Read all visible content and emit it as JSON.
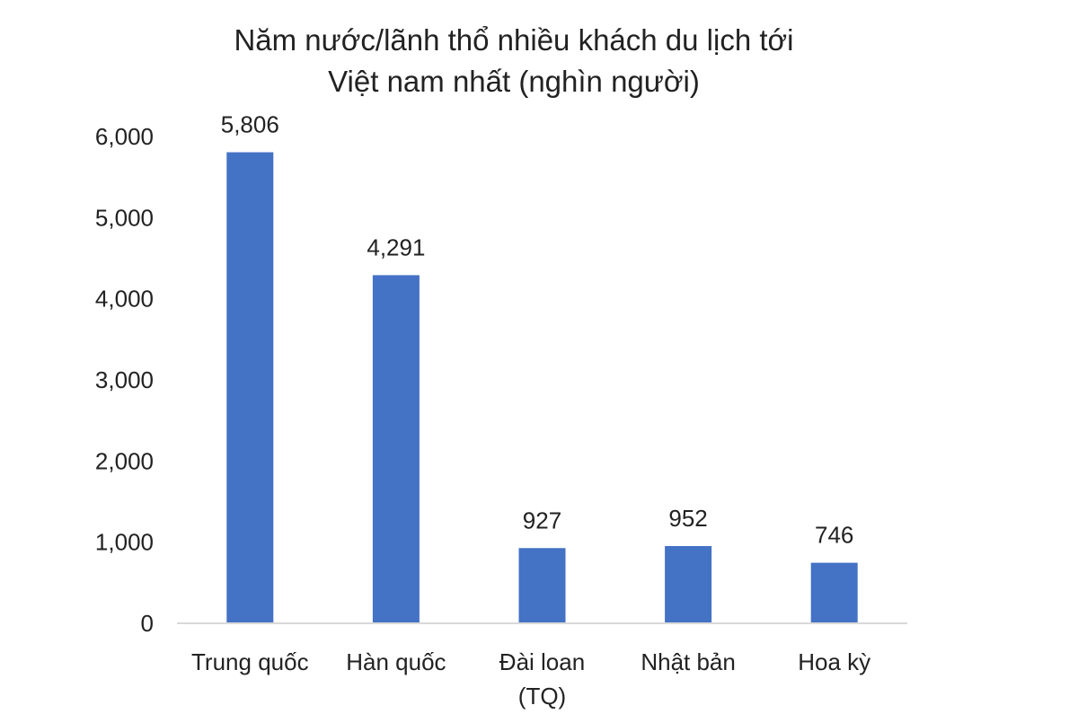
{
  "chart_data": {
    "type": "bar",
    "title_lines": [
      "Năm nước/lãnh thổ nhiều khách du lịch tới",
      "Việt nam nhất (nghìn người)"
    ],
    "categories": [
      [
        "Trung quốc"
      ],
      [
        "Hàn quốc"
      ],
      [
        "Đài loan",
        "(TQ)"
      ],
      [
        "Nhật bản"
      ],
      [
        "Hoa kỳ"
      ]
    ],
    "values": [
      5806,
      4291,
      927,
      952,
      746
    ],
    "value_labels": [
      "5,806",
      "4,291",
      "927",
      "952",
      "746"
    ],
    "ylim": [
      0,
      6000
    ],
    "yticks": [
      0,
      1000,
      2000,
      3000,
      4000,
      5000,
      6000
    ],
    "ytick_labels": [
      "0",
      "1,000",
      "2,000",
      "3,000",
      "4,000",
      "5,000",
      "6,000"
    ],
    "grid": false,
    "legend": "none",
    "bar_color": "#4472C4",
    "axis_color": "#D9D9D9"
  }
}
